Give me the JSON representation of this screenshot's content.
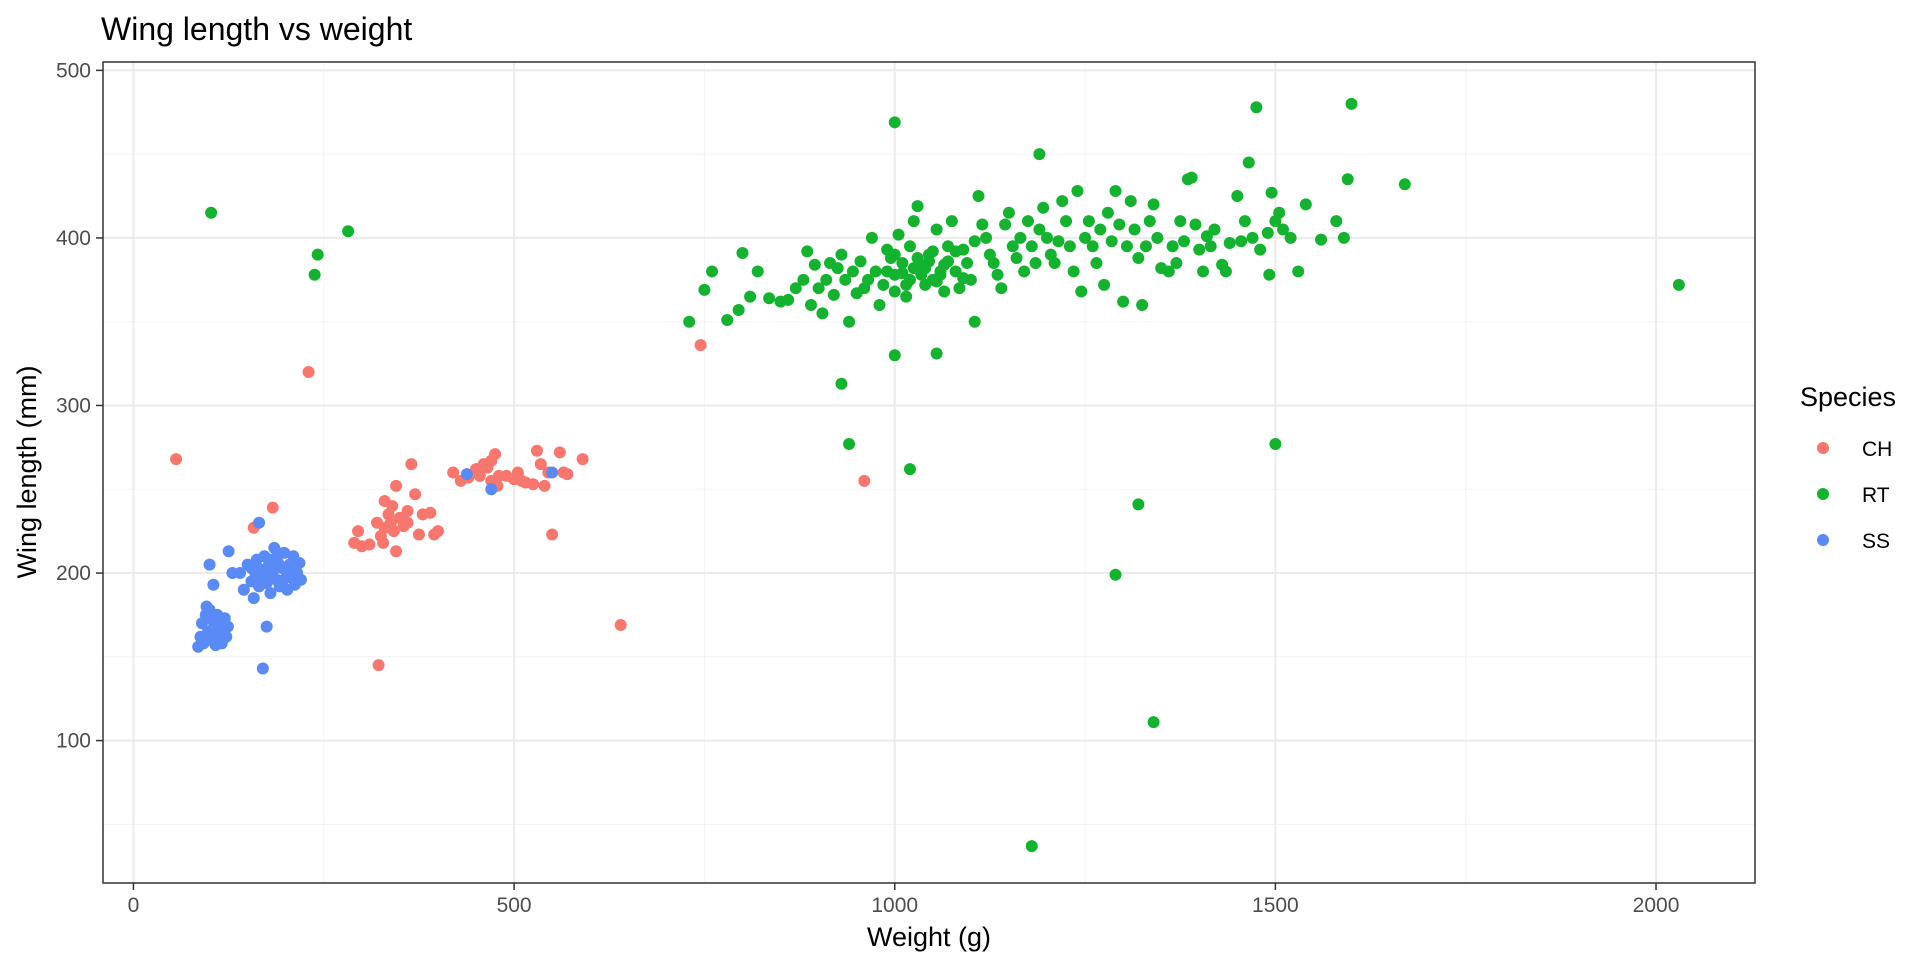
{
  "chart_data": {
    "type": "scatter",
    "title": "Wing length vs weight",
    "xlabel": "Weight (g)",
    "ylabel": "Wing length (mm)",
    "xlim": [
      -40,
      2130
    ],
    "ylim": [
      15,
      505
    ],
    "x_ticks": [
      0,
      500,
      1000,
      1500,
      2000
    ],
    "y_ticks": [
      100,
      200,
      300,
      400,
      500
    ],
    "grid": true,
    "legend": {
      "title": "Species",
      "position": "right"
    },
    "series": [
      {
        "name": "CH",
        "color": "#F8766D",
        "points": [
          [
            56,
            268
          ],
          [
            230,
            320
          ],
          [
            158,
            227
          ],
          [
            183,
            239
          ],
          [
            322,
            145
          ],
          [
            640,
            169
          ],
          [
            745,
            336
          ],
          [
            960,
            255
          ],
          [
            550,
            223
          ],
          [
            290,
            218
          ],
          [
            300,
            216
          ],
          [
            295,
            225
          ],
          [
            320,
            230
          ],
          [
            325,
            222
          ],
          [
            330,
            227
          ],
          [
            335,
            235
          ],
          [
            340,
            240
          ],
          [
            345,
            252
          ],
          [
            330,
            243
          ],
          [
            345,
            213
          ],
          [
            355,
            228
          ],
          [
            360,
            237
          ],
          [
            365,
            265
          ],
          [
            370,
            247
          ],
          [
            375,
            223
          ],
          [
            380,
            235
          ],
          [
            390,
            236
          ],
          [
            395,
            223
          ],
          [
            400,
            225
          ],
          [
            310,
            217
          ],
          [
            338,
            230
          ],
          [
            350,
            233
          ],
          [
            342,
            225
          ],
          [
            328,
            218
          ],
          [
            360,
            230
          ],
          [
            420,
            260
          ],
          [
            430,
            255
          ],
          [
            440,
            257
          ],
          [
            450,
            262
          ],
          [
            455,
            258
          ],
          [
            460,
            265
          ],
          [
            465,
            263
          ],
          [
            470,
            267
          ],
          [
            475,
            271
          ],
          [
            478,
            252
          ],
          [
            490,
            258
          ],
          [
            500,
            256
          ],
          [
            505,
            260
          ],
          [
            510,
            255
          ],
          [
            515,
            254
          ],
          [
            525,
            253
          ],
          [
            530,
            273
          ],
          [
            535,
            265
          ],
          [
            540,
            252
          ],
          [
            545,
            260
          ],
          [
            560,
            272
          ],
          [
            565,
            260
          ],
          [
            570,
            259
          ],
          [
            590,
            268
          ],
          [
            470,
            255
          ],
          [
            480,
            258
          ]
        ]
      },
      {
        "name": "RT",
        "color": "#14B32F",
        "points": [
          [
            102,
            415
          ],
          [
            238,
            378
          ],
          [
            242,
            390
          ],
          [
            282,
            404
          ],
          [
            930,
            313
          ],
          [
            940,
            277
          ],
          [
            1020,
            262
          ],
          [
            1180,
            37
          ],
          [
            1290,
            199
          ],
          [
            1320,
            241
          ],
          [
            1340,
            111
          ],
          [
            1500,
            277
          ],
          [
            2030,
            372
          ],
          [
            1000,
            469
          ],
          [
            1475,
            478
          ],
          [
            1600,
            480
          ],
          [
            1190,
            450
          ],
          [
            1670,
            432
          ],
          [
            1595,
            435
          ],
          [
            1000,
            330
          ],
          [
            1055,
            331
          ],
          [
            1105,
            350
          ],
          [
            730,
            350
          ],
          [
            750,
            369
          ],
          [
            760,
            380
          ],
          [
            780,
            351
          ],
          [
            795,
            357
          ],
          [
            800,
            391
          ],
          [
            810,
            365
          ],
          [
            820,
            380
          ],
          [
            835,
            364
          ],
          [
            850,
            362
          ],
          [
            860,
            363
          ],
          [
            870,
            370
          ],
          [
            880,
            375
          ],
          [
            885,
            392
          ],
          [
            890,
            360
          ],
          [
            895,
            384
          ],
          [
            900,
            370
          ],
          [
            905,
            355
          ],
          [
            910,
            375
          ],
          [
            915,
            385
          ],
          [
            920,
            366
          ],
          [
            925,
            382
          ],
          [
            930,
            390
          ],
          [
            935,
            375
          ],
          [
            940,
            350
          ],
          [
            945,
            380
          ],
          [
            950,
            367
          ],
          [
            955,
            386
          ],
          [
            960,
            370
          ],
          [
            965,
            375
          ],
          [
            970,
            400
          ],
          [
            975,
            380
          ],
          [
            980,
            360
          ],
          [
            985,
            372
          ],
          [
            990,
            393
          ],
          [
            995,
            388
          ],
          [
            1000,
            368
          ],
          [
            1005,
            402
          ],
          [
            1010,
            379
          ],
          [
            1015,
            365
          ],
          [
            1020,
            395
          ],
          [
            1025,
            410
          ],
          [
            1030,
            419
          ],
          [
            1035,
            383
          ],
          [
            1040,
            372
          ],
          [
            1045,
            390
          ],
          [
            1050,
            375
          ],
          [
            1055,
            405
          ],
          [
            1060,
            380
          ],
          [
            1065,
            368
          ],
          [
            1070,
            395
          ],
          [
            1075,
            410
          ],
          [
            1080,
            380
          ],
          [
            1085,
            370
          ],
          [
            1090,
            393
          ],
          [
            1095,
            385
          ],
          [
            1100,
            375
          ],
          [
            1105,
            398
          ],
          [
            1110,
            425
          ],
          [
            1115,
            408
          ],
          [
            1120,
            400
          ],
          [
            1125,
            390
          ],
          [
            1130,
            385
          ],
          [
            1135,
            378
          ],
          [
            1140,
            370
          ],
          [
            1145,
            408
          ],
          [
            1150,
            415
          ],
          [
            1155,
            395
          ],
          [
            1160,
            388
          ],
          [
            1165,
            400
          ],
          [
            1170,
            380
          ],
          [
            1175,
            410
          ],
          [
            1180,
            395
          ],
          [
            1185,
            385
          ],
          [
            1190,
            405
          ],
          [
            1195,
            418
          ],
          [
            1200,
            400
          ],
          [
            1205,
            390
          ],
          [
            1210,
            385
          ],
          [
            1215,
            398
          ],
          [
            1220,
            422
          ],
          [
            1225,
            410
          ],
          [
            1230,
            395
          ],
          [
            1235,
            380
          ],
          [
            1240,
            428
          ],
          [
            1245,
            368
          ],
          [
            1250,
            400
          ],
          [
            1255,
            410
          ],
          [
            1260,
            395
          ],
          [
            1265,
            385
          ],
          [
            1270,
            405
          ],
          [
            1275,
            372
          ],
          [
            1280,
            415
          ],
          [
            1285,
            398
          ],
          [
            1290,
            428
          ],
          [
            1295,
            408
          ],
          [
            1300,
            362
          ],
          [
            1305,
            395
          ],
          [
            1310,
            422
          ],
          [
            1315,
            405
          ],
          [
            1320,
            388
          ],
          [
            1325,
            360
          ],
          [
            1330,
            395
          ],
          [
            1335,
            410
          ],
          [
            1340,
            420
          ],
          [
            1345,
            400
          ],
          [
            1350,
            382
          ],
          [
            1360,
            380
          ],
          [
            1365,
            395
          ],
          [
            1370,
            385
          ],
          [
            1375,
            410
          ],
          [
            1380,
            398
          ],
          [
            1385,
            435
          ],
          [
            1390,
            436
          ],
          [
            1395,
            408
          ],
          [
            1400,
            393
          ],
          [
            1405,
            380
          ],
          [
            1410,
            401
          ],
          [
            1415,
            395
          ],
          [
            1420,
            405
          ],
          [
            1430,
            384
          ],
          [
            1435,
            380
          ],
          [
            1440,
            397
          ],
          [
            1450,
            425
          ],
          [
            1455,
            398
          ],
          [
            1460,
            410
          ],
          [
            1465,
            445
          ],
          [
            1470,
            400
          ],
          [
            1480,
            393
          ],
          [
            1490,
            403
          ],
          [
            1492,
            378
          ],
          [
            1495,
            427
          ],
          [
            1500,
            410
          ],
          [
            1505,
            415
          ],
          [
            1510,
            405
          ],
          [
            1520,
            400
          ],
          [
            1530,
            380
          ],
          [
            1540,
            420
          ],
          [
            1560,
            399
          ],
          [
            1580,
            410
          ],
          [
            1590,
            400
          ],
          [
            1000,
            378
          ],
          [
            1010,
            385
          ],
          [
            1020,
            375
          ],
          [
            1030,
            388
          ],
          [
            1040,
            382
          ],
          [
            1050,
            392
          ],
          [
            1060,
            378
          ],
          [
            1070,
            386
          ],
          [
            1080,
            392
          ],
          [
            990,
            380
          ],
          [
            1000,
            390
          ],
          [
            1015,
            372
          ],
          [
            1025,
            382
          ],
          [
            1035,
            378
          ],
          [
            1045,
            386
          ],
          [
            1055,
            374
          ],
          [
            1065,
            384
          ],
          [
            1090,
            376
          ]
        ]
      },
      {
        "name": "SS",
        "color": "#5A8AF5",
        "points": [
          [
            170,
            143
          ],
          [
            165,
            230
          ],
          [
            175,
            168
          ],
          [
            100,
            205
          ],
          [
            105,
            193
          ],
          [
            125,
            213
          ],
          [
            130,
            200
          ],
          [
            438,
            259
          ],
          [
            470,
            250
          ],
          [
            550,
            260
          ],
          [
            85,
            156
          ],
          [
            88,
            162
          ],
          [
            90,
            170
          ],
          [
            92,
            158
          ],
          [
            95,
            175
          ],
          [
            98,
            165
          ],
          [
            100,
            178
          ],
          [
            102,
            160
          ],
          [
            104,
            172
          ],
          [
            106,
            168
          ],
          [
            108,
            157
          ],
          [
            110,
            175
          ],
          [
            112,
            163
          ],
          [
            114,
            170
          ],
          [
            116,
            158
          ],
          [
            118,
            166
          ],
          [
            120,
            173
          ],
          [
            122,
            162
          ],
          [
            124,
            168
          ],
          [
            96,
            180
          ],
          [
            140,
            200
          ],
          [
            145,
            190
          ],
          [
            150,
            205
          ],
          [
            155,
            195
          ],
          [
            158,
            185
          ],
          [
            160,
            200
          ],
          [
            162,
            208
          ],
          [
            165,
            192
          ],
          [
            168,
            202
          ],
          [
            170,
            198
          ],
          [
            172,
            210
          ],
          [
            175,
            194
          ],
          [
            178,
            205
          ],
          [
            180,
            188
          ],
          [
            182,
            200
          ],
          [
            185,
            215
          ],
          [
            188,
            196
          ],
          [
            190,
            206
          ],
          [
            192,
            192
          ],
          [
            195,
            203
          ],
          [
            198,
            212
          ],
          [
            200,
            197
          ],
          [
            202,
            190
          ],
          [
            205,
            205
          ],
          [
            208,
            198
          ],
          [
            210,
            210
          ],
          [
            212,
            193
          ],
          [
            215,
            200
          ],
          [
            218,
            206
          ],
          [
            220,
            196
          ],
          [
            175,
            200
          ],
          [
            185,
            197
          ],
          [
            195,
            193
          ],
          [
            205,
            201
          ],
          [
            165,
            197
          ],
          [
            155,
            203
          ],
          [
            180,
            208
          ],
          [
            190,
            212
          ]
        ]
      }
    ]
  }
}
